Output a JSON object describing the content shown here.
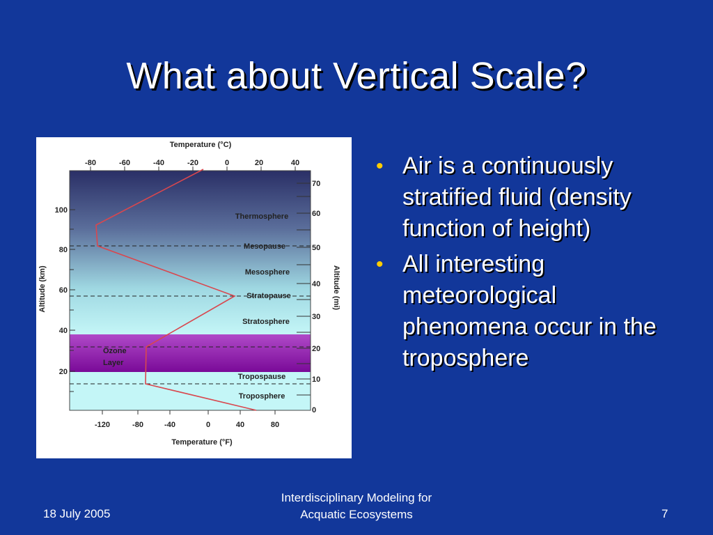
{
  "slide": {
    "title": "What about Vertical Scale?",
    "bullets": [
      "Air is a continuously stratified fluid (density function of height)",
      "All interesting meteorological phenomena occur in the troposphere"
    ],
    "footer": {
      "date": "18 July 2005",
      "center_line1": "Interdisciplinary Modeling for",
      "center_line2": "Acquatic Ecosystems",
      "page": "7"
    }
  },
  "figure": {
    "top_axis_title": "Temperature (°C)",
    "top_ticks": [
      "-80",
      "-60",
      "-40",
      "-20",
      "0",
      "20",
      "40"
    ],
    "bottom_axis_title": "Temperature (°F)",
    "bottom_ticks": [
      "-120",
      "-80",
      "-40",
      "0",
      "40",
      "80"
    ],
    "left_axis_title": "Altitude (km)",
    "left_ticks": [
      "100",
      "80",
      "60",
      "40",
      "20"
    ],
    "right_axis_title": "Altitude (mi)",
    "right_ticks": [
      "70",
      "60",
      "50",
      "40",
      "30",
      "20",
      "10",
      "0"
    ],
    "layers": {
      "thermosphere": "Thermosphere",
      "mesopause": "Mesopause",
      "mesosphere": "Mesosphere",
      "stratopause": "Stratopause",
      "stratosphere": "Stratosphere",
      "ozone_line1": "Ozone",
      "ozone_line2": "Layer",
      "tropopause": "Tropospause",
      "troposphere": "Troposphere"
    },
    "colors": {
      "profile_line": "#d9474e",
      "ozone": "#8a10a8",
      "upper_sky": "#2a2f66",
      "lower_sky": "#bff3f5"
    }
  }
}
